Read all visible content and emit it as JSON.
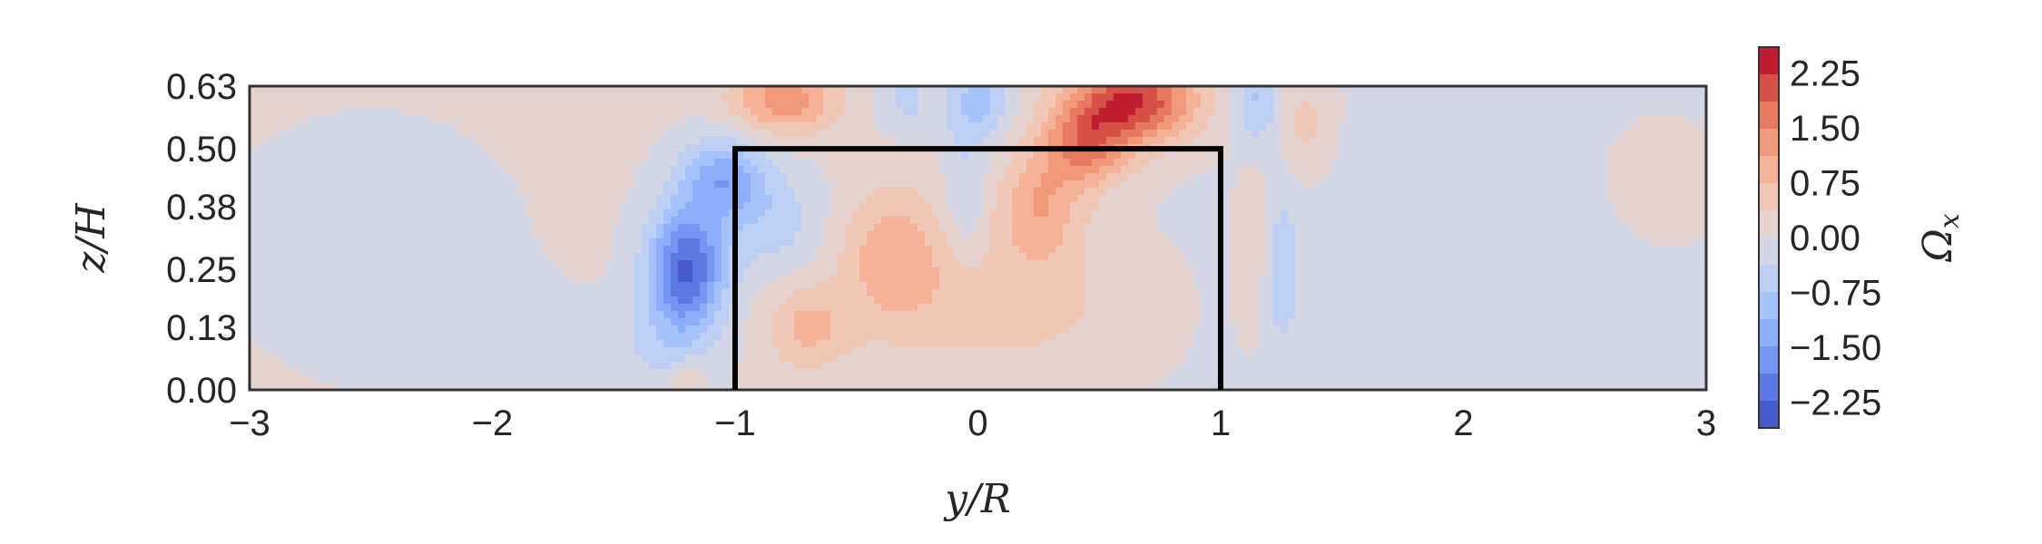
{
  "chart_data": {
    "type": "heatmap",
    "xlabel": "y/R",
    "ylabel": "z/H",
    "xlim": [
      -3,
      3
    ],
    "ylim": [
      0,
      0.63
    ],
    "xticks": [
      "−3",
      "−2",
      "−1",
      "0",
      "1",
      "2",
      "3"
    ],
    "xtick_values": [
      -3,
      -2,
      -1,
      0,
      1,
      2,
      3
    ],
    "yticks": [
      "0.00",
      "0.13",
      "0.25",
      "0.38",
      "0.50",
      "0.63"
    ],
    "ytick_values": [
      0.0,
      0.13,
      0.25,
      0.38,
      0.5,
      0.63
    ],
    "colorbar": {
      "label": "Ωx",
      "label_base": "Ω",
      "label_sub": "x",
      "range": [
        -2.6,
        2.6
      ],
      "ticks": [
        "2.25",
        "1.50",
        "0.75",
        "0.00",
        "−0.75",
        "−1.50",
        "−2.25"
      ],
      "tick_values": [
        2.25,
        1.5,
        0.75,
        0.0,
        -0.75,
        -1.5,
        -2.25
      ],
      "colormap": "coolwarm",
      "colors": [
        "#3b4cc0",
        "#6788ee",
        "#9abbff",
        "#c9d7f0",
        "#edd1c2",
        "#f7a889",
        "#e26952",
        "#b40426"
      ]
    },
    "outline": {
      "description": "rectangle",
      "y_range": [
        -1,
        1
      ],
      "z_range": [
        0,
        0.5
      ],
      "color": "#000000"
    },
    "grid": false,
    "field_features": [
      {
        "y": -1.2,
        "z": 0.25,
        "value": -2.3,
        "sy": 0.11,
        "sz": 0.09
      },
      {
        "y": -1.05,
        "z": 0.44,
        "value": -1.3,
        "sy": 0.12,
        "sz": 0.06
      },
      {
        "y": -0.85,
        "z": 0.35,
        "value": -0.6,
        "sy": 0.15,
        "sz": 0.08
      },
      {
        "y": 0.65,
        "z": 0.6,
        "value": 2.2,
        "sy": 0.18,
        "sz": 0.06
      },
      {
        "y": 0.45,
        "z": 0.51,
        "value": 1.5,
        "sy": 0.13,
        "sz": 0.06
      },
      {
        "y": 0.25,
        "z": 0.38,
        "value": 1.0,
        "sy": 0.12,
        "sz": 0.08
      },
      {
        "y": -0.8,
        "z": 0.6,
        "value": 1.3,
        "sy": 0.15,
        "sz": 0.05
      },
      {
        "y": -0.35,
        "z": 0.28,
        "value": 0.9,
        "sy": 0.15,
        "sz": 0.1
      },
      {
        "y": -0.7,
        "z": 0.13,
        "value": 0.8,
        "sy": 0.12,
        "sz": 0.06
      },
      {
        "y": 0.1,
        "z": 0.18,
        "value": 0.5,
        "sy": 0.35,
        "sz": 0.1
      },
      {
        "y": 0.0,
        "z": 0.6,
        "value": -0.9,
        "sy": 0.1,
        "sz": 0.06
      },
      {
        "y": -0.3,
        "z": 0.6,
        "value": -0.5,
        "sy": 0.08,
        "sz": 0.05
      },
      {
        "y": -0.05,
        "z": 0.4,
        "value": -0.5,
        "sy": 0.06,
        "sz": 0.1
      },
      {
        "y": 1.15,
        "z": 0.6,
        "value": -0.8,
        "sy": 0.06,
        "sz": 0.06
      },
      {
        "y": 1.25,
        "z": 0.25,
        "value": -0.6,
        "sy": 0.05,
        "sz": 0.12
      },
      {
        "y": 1.35,
        "z": 0.55,
        "value": 0.5,
        "sy": 0.08,
        "sz": 0.08
      },
      {
        "y": 1.15,
        "z": 0.3,
        "value": 0.3,
        "sy": 0.06,
        "sz": 0.12
      },
      {
        "y": -1.3,
        "z": 0.08,
        "value": -0.4,
        "sy": 0.15,
        "sz": 0.08
      },
      {
        "y": -1.2,
        "z": 0.02,
        "value": 0.6,
        "sy": 0.05,
        "sz": 0.03
      },
      {
        "y": -2.5,
        "z": 0.3,
        "value": -0.3,
        "sy": 0.35,
        "sz": 0.15
      },
      {
        "y": 2.1,
        "z": 0.3,
        "value": -0.3,
        "sy": 0.5,
        "sz": 0.2
      },
      {
        "y": -2.0,
        "z": 0.1,
        "value": -0.2,
        "sy": 0.3,
        "sz": 0.08
      },
      {
        "y": 2.7,
        "z": 0.4,
        "value": 0.2,
        "sy": 0.25,
        "sz": 0.12
      }
    ],
    "background_value": 0.05
  }
}
